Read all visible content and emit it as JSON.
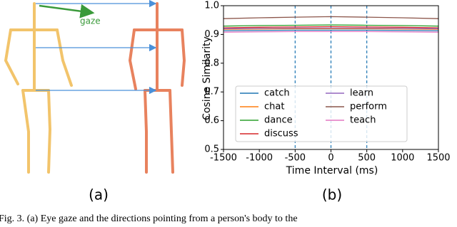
{
  "diagram": {
    "gaze_label": "gaze",
    "panel_label": "(a)"
  },
  "chart_data": {
    "type": "line",
    "panel_label": "(b)",
    "x_label": "Time Interval (ms)",
    "y_label": "Cosine Similarity",
    "x": [
      -1500,
      -1000,
      -500,
      0,
      500,
      1000,
      1500
    ],
    "xlim": [
      -1500,
      1500
    ],
    "xticks": [
      -1500,
      -1000,
      -500,
      0,
      500,
      1000,
      1500
    ],
    "ylim": [
      0.5,
      1
    ],
    "yticks": [
      0.5,
      0.6,
      0.7,
      0.8,
      0.9,
      {
        "value": 1,
        "label": "1.0"
      }
    ],
    "vlines": [
      -500,
      0,
      500
    ],
    "vline_color": "#1f77b4",
    "series": [
      {
        "name": "catch",
        "color": "#1f77b4",
        "values": [
          0.913,
          0.914,
          0.915,
          0.915,
          0.915,
          0.914,
          0.913
        ]
      },
      {
        "name": "chat",
        "color": "#ff7f0e",
        "values": [
          0.918,
          0.919,
          0.92,
          0.92,
          0.92,
          0.919,
          0.918
        ]
      },
      {
        "name": "dance",
        "color": "#2ca02c",
        "values": [
          0.929,
          0.931,
          0.932,
          0.933,
          0.932,
          0.931,
          0.929
        ]
      },
      {
        "name": "discuss",
        "color": "#d62728",
        "values": [
          0.923,
          0.925,
          0.926,
          0.927,
          0.926,
          0.925,
          0.923
        ]
      },
      {
        "name": "learn",
        "color": "#9467bd",
        "values": [
          0.92,
          0.921,
          0.922,
          0.922,
          0.922,
          0.921,
          0.92
        ]
      },
      {
        "name": "perform",
        "color": "#8c564b",
        "values": [
          0.955,
          0.958,
          0.96,
          0.962,
          0.96,
          0.958,
          0.955
        ]
      },
      {
        "name": "teach",
        "color": "#e377c2",
        "values": [
          0.908,
          0.909,
          0.91,
          0.91,
          0.91,
          0.909,
          0.908
        ]
      }
    ]
  },
  "caption": "Fig. 3.   (a) Eye gaze and the directions pointing from a person's body to the"
}
